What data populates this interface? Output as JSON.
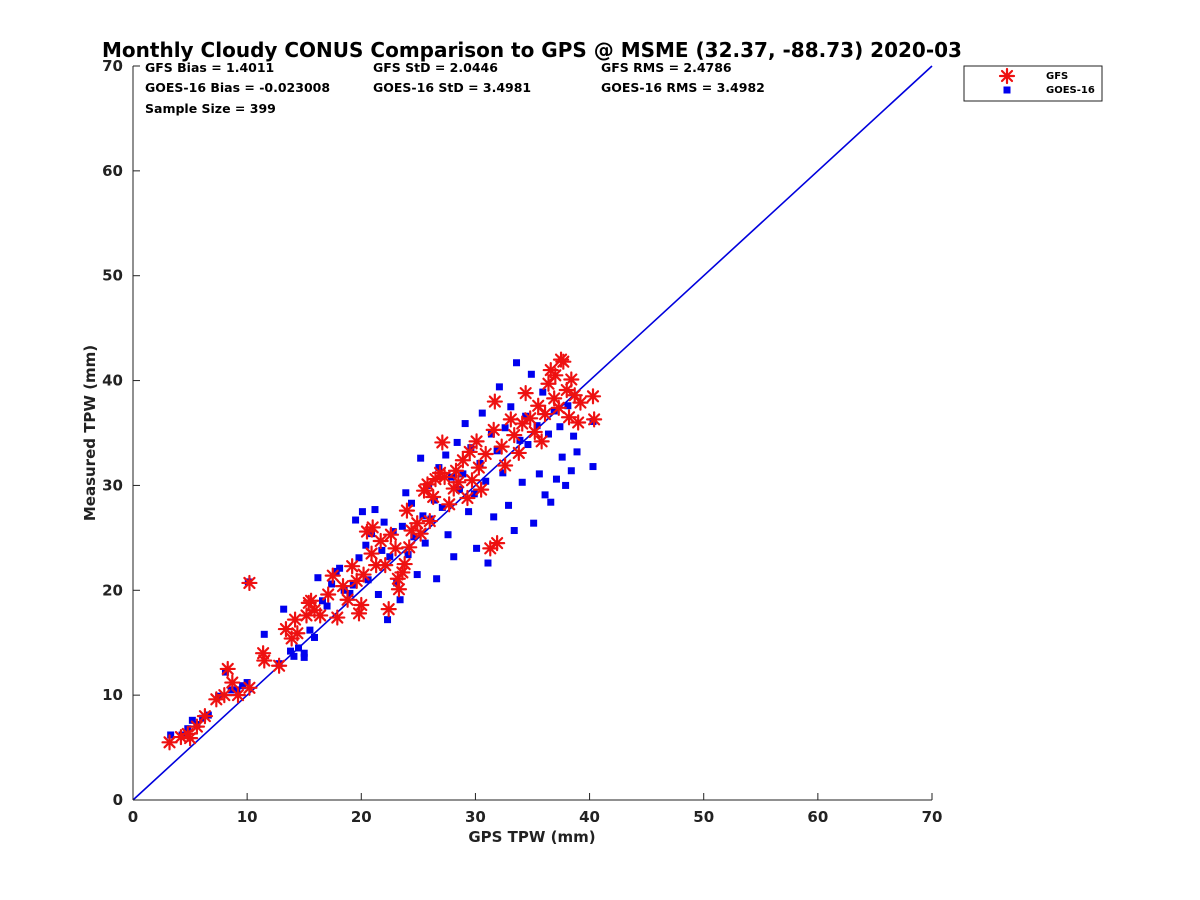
{
  "chart_data": {
    "type": "scatter",
    "title": "Monthly Cloudy CONUS Comparison to GPS @ MSME (32.37, -88.73) 2020-03",
    "xlabel": "GPS TPW (mm)",
    "ylabel": "Measured TPW (mm)",
    "xlim": [
      0,
      70
    ],
    "ylim": [
      0,
      70
    ],
    "xticks": [
      "0",
      "10",
      "20",
      "30",
      "40",
      "50",
      "60",
      "70"
    ],
    "yticks": [
      "0",
      "10",
      "20",
      "30",
      "40",
      "50",
      "60",
      "70"
    ],
    "grid": false,
    "legend_position": "top-right",
    "stats": {
      "row1": [
        "GFS Bias = 1.4011",
        "GFS StD = 2.0446",
        "GFS RMS = 2.4786"
      ],
      "row2": [
        "GOES-16 Bias = -0.023008",
        "GOES-16 StD = 3.4981",
        "GOES-16 RMS = 3.4982"
      ],
      "row3": [
        "Sample Size = 399"
      ]
    },
    "reference_line": {
      "x": [
        0,
        70
      ],
      "y": [
        0,
        70
      ],
      "color": "#0000dd"
    },
    "series": [
      {
        "name": "GFS",
        "marker": "asterisk",
        "color": "#ee1111",
        "points": [
          [
            3.2,
            5.5
          ],
          [
            4.2,
            6.0
          ],
          [
            4.8,
            6.3
          ],
          [
            5.0,
            5.9
          ],
          [
            5.6,
            7.0
          ],
          [
            6.3,
            8.0
          ],
          [
            7.3,
            9.6
          ],
          [
            8.0,
            10.0
          ],
          [
            8.3,
            12.5
          ],
          [
            8.7,
            11.2
          ],
          [
            9.2,
            10.0
          ],
          [
            10.2,
            10.7
          ],
          [
            10.2,
            20.7
          ],
          [
            11.4,
            14.0
          ],
          [
            11.5,
            13.3
          ],
          [
            12.8,
            12.8
          ],
          [
            13.4,
            16.3
          ],
          [
            13.9,
            15.4
          ],
          [
            14.2,
            17.2
          ],
          [
            14.4,
            15.9
          ],
          [
            15.2,
            17.6
          ],
          [
            15.4,
            18.8
          ],
          [
            15.6,
            19.0
          ],
          [
            15.9,
            18.1
          ],
          [
            16.4,
            17.6
          ],
          [
            17.1,
            19.6
          ],
          [
            17.5,
            21.4
          ],
          [
            17.9,
            17.4
          ],
          [
            18.4,
            20.4
          ],
          [
            18.8,
            19.1
          ],
          [
            19.2,
            22.3
          ],
          [
            19.6,
            20.9
          ],
          [
            19.8,
            17.8
          ],
          [
            20.0,
            18.6
          ],
          [
            20.2,
            21.5
          ],
          [
            20.5,
            25.6
          ],
          [
            20.9,
            23.5
          ],
          [
            21.0,
            26.0
          ],
          [
            21.3,
            22.4
          ],
          [
            21.7,
            24.7
          ],
          [
            22.1,
            22.4
          ],
          [
            22.4,
            18.2
          ],
          [
            22.6,
            25.3
          ],
          [
            23.0,
            24.0
          ],
          [
            23.2,
            21.1
          ],
          [
            23.3,
            20.1
          ],
          [
            23.6,
            21.7
          ],
          [
            23.8,
            22.5
          ],
          [
            24.0,
            27.6
          ],
          [
            24.2,
            24.1
          ],
          [
            24.4,
            25.7
          ],
          [
            24.9,
            26.4
          ],
          [
            25.2,
            25.4
          ],
          [
            25.5,
            29.5
          ],
          [
            25.8,
            30.1
          ],
          [
            26.0,
            26.6
          ],
          [
            26.3,
            28.9
          ],
          [
            26.5,
            30.6
          ],
          [
            26.9,
            31.2
          ],
          [
            27.1,
            34.1
          ],
          [
            27.3,
            30.8
          ],
          [
            27.7,
            28.2
          ],
          [
            28.1,
            29.7
          ],
          [
            28.3,
            31.4
          ],
          [
            28.5,
            30.3
          ],
          [
            28.9,
            32.4
          ],
          [
            29.3,
            28.8
          ],
          [
            29.5,
            33.2
          ],
          [
            29.7,
            30.5
          ],
          [
            30.1,
            34.2
          ],
          [
            30.3,
            31.7
          ],
          [
            30.5,
            29.6
          ],
          [
            30.9,
            33.0
          ],
          [
            31.3,
            24.0
          ],
          [
            31.6,
            35.3
          ],
          [
            31.9,
            24.5
          ],
          [
            31.7,
            38.0
          ],
          [
            32.3,
            33.7
          ],
          [
            32.6,
            31.9
          ],
          [
            33.1,
            36.3
          ],
          [
            33.4,
            34.8
          ],
          [
            33.8,
            33.1
          ],
          [
            34.1,
            35.9
          ],
          [
            34.4,
            38.8
          ],
          [
            34.8,
            36.4
          ],
          [
            35.2,
            35.1
          ],
          [
            35.5,
            37.6
          ],
          [
            35.8,
            34.2
          ],
          [
            36.1,
            36.8
          ],
          [
            36.4,
            39.7
          ],
          [
            36.6,
            41.0
          ],
          [
            36.9,
            38.3
          ],
          [
            37.0,
            40.5
          ],
          [
            37.3,
            37.4
          ],
          [
            37.5,
            42.0
          ],
          [
            37.7,
            41.8
          ],
          [
            38.0,
            39.1
          ],
          [
            38.2,
            36.5
          ],
          [
            38.4,
            40.1
          ],
          [
            38.7,
            38.6
          ],
          [
            39.0,
            36.0
          ],
          [
            39.2,
            37.9
          ],
          [
            40.3,
            38.5
          ],
          [
            40.4,
            36.3
          ]
        ]
      },
      {
        "name": "GOES-16",
        "marker": "square",
        "color": "#0000ee",
        "points": [
          [
            3.3,
            6.2
          ],
          [
            4.3,
            6.2
          ],
          [
            4.8,
            6.8
          ],
          [
            5.2,
            7.6
          ],
          [
            5.6,
            7.2
          ],
          [
            6.1,
            7.8
          ],
          [
            6.6,
            8.1
          ],
          [
            7.5,
            9.9
          ],
          [
            8.1,
            12.2
          ],
          [
            8.6,
            10.5
          ],
          [
            9.1,
            10.5
          ],
          [
            9.6,
            10.9
          ],
          [
            10.0,
            11.2
          ],
          [
            10.1,
            20.8
          ],
          [
            11.5,
            15.8
          ],
          [
            12.8,
            13.0
          ],
          [
            13.2,
            18.2
          ],
          [
            13.8,
            14.2
          ],
          [
            14.1,
            13.7
          ],
          [
            14.5,
            14.5
          ],
          [
            15.0,
            13.6
          ],
          [
            15.0,
            14.0
          ],
          [
            15.5,
            16.2
          ],
          [
            15.9,
            15.5
          ],
          [
            16.2,
            21.2
          ],
          [
            16.6,
            19.0
          ],
          [
            17.0,
            18.5
          ],
          [
            17.4,
            20.6
          ],
          [
            17.8,
            21.8
          ],
          [
            18.1,
            22.1
          ],
          [
            18.5,
            20.0
          ],
          [
            19.0,
            19.7
          ],
          [
            19.3,
            20.5
          ],
          [
            19.5,
            26.7
          ],
          [
            19.8,
            23.1
          ],
          [
            20.1,
            27.5
          ],
          [
            20.4,
            24.3
          ],
          [
            20.6,
            21.0
          ],
          [
            20.9,
            25.4
          ],
          [
            21.2,
            27.7
          ],
          [
            21.5,
            19.6
          ],
          [
            21.8,
            23.8
          ],
          [
            22.0,
            26.5
          ],
          [
            22.3,
            17.2
          ],
          [
            22.5,
            23.2
          ],
          [
            22.8,
            25.6
          ],
          [
            23.1,
            20.7
          ],
          [
            23.4,
            19.1
          ],
          [
            23.6,
            26.1
          ],
          [
            23.9,
            29.3
          ],
          [
            24.1,
            23.4
          ],
          [
            24.4,
            28.3
          ],
          [
            24.6,
            25.1
          ],
          [
            24.9,
            21.5
          ],
          [
            25.2,
            32.6
          ],
          [
            25.4,
            27.1
          ],
          [
            25.6,
            24.5
          ],
          [
            25.9,
            30.0
          ],
          [
            26.1,
            26.8
          ],
          [
            26.4,
            28.6
          ],
          [
            26.6,
            21.1
          ],
          [
            26.8,
            31.7
          ],
          [
            27.1,
            27.9
          ],
          [
            27.4,
            32.9
          ],
          [
            27.6,
            25.3
          ],
          [
            27.9,
            30.8
          ],
          [
            28.1,
            23.2
          ],
          [
            28.4,
            34.1
          ],
          [
            28.6,
            29.6
          ],
          [
            28.9,
            31.1
          ],
          [
            29.1,
            35.9
          ],
          [
            29.4,
            27.5
          ],
          [
            29.6,
            33.6
          ],
          [
            29.9,
            29.2
          ],
          [
            30.1,
            24.0
          ],
          [
            30.4,
            32.1
          ],
          [
            30.6,
            36.9
          ],
          [
            30.9,
            30.4
          ],
          [
            31.1,
            22.6
          ],
          [
            31.4,
            34.9
          ],
          [
            31.6,
            27.0
          ],
          [
            31.9,
            33.3
          ],
          [
            32.1,
            39.4
          ],
          [
            32.4,
            31.2
          ],
          [
            32.6,
            35.5
          ],
          [
            32.9,
            28.1
          ],
          [
            33.1,
            37.5
          ],
          [
            33.4,
            25.7
          ],
          [
            33.6,
            41.7
          ],
          [
            33.9,
            34.3
          ],
          [
            34.1,
            30.3
          ],
          [
            34.4,
            36.6
          ],
          [
            34.6,
            33.9
          ],
          [
            34.9,
            40.6
          ],
          [
            35.1,
            26.4
          ],
          [
            35.4,
            35.7
          ],
          [
            35.6,
            31.1
          ],
          [
            35.9,
            38.9
          ],
          [
            36.1,
            29.1
          ],
          [
            36.4,
            34.9
          ],
          [
            36.6,
            28.4
          ],
          [
            36.9,
            37.1
          ],
          [
            37.1,
            30.6
          ],
          [
            37.4,
            35.6
          ],
          [
            37.6,
            32.7
          ],
          [
            37.9,
            30.0
          ],
          [
            38.1,
            37.6
          ],
          [
            38.4,
            31.4
          ],
          [
            38.6,
            34.7
          ],
          [
            38.9,
            33.2
          ],
          [
            40.3,
            31.8
          ],
          [
            40.3,
            36.1
          ]
        ]
      }
    ]
  }
}
